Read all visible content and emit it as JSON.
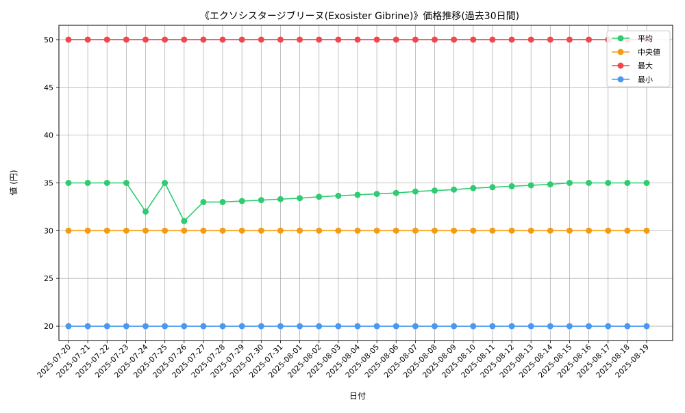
{
  "chart_data": {
    "type": "line",
    "title": "《エクソシスタージブリーヌ(Exosister Gibrine)》価格推移(過去30日間)",
    "xlabel": "日付",
    "ylabel": "値 (円)",
    "ylim": [
      18.5,
      51.5
    ],
    "yticks": [
      20,
      25,
      30,
      35,
      40,
      45,
      50
    ],
    "grid": true,
    "legend_position": "top-right",
    "categories": [
      "2025-07-20",
      "2025-07-21",
      "2025-07-22",
      "2025-07-23",
      "2025-07-24",
      "2025-07-25",
      "2025-07-26",
      "2025-07-27",
      "2025-07-28",
      "2025-07-29",
      "2025-07-30",
      "2025-07-31",
      "2025-08-01",
      "2025-08-02",
      "2025-08-03",
      "2025-08-04",
      "2025-08-05",
      "2025-08-06",
      "2025-08-07",
      "2025-08-08",
      "2025-08-09",
      "2025-08-10",
      "2025-08-11",
      "2025-08-12",
      "2025-08-13",
      "2025-08-14",
      "2025-08-15",
      "2025-08-16",
      "2025-08-17",
      "2025-08-18",
      "2025-08-19"
    ],
    "series": [
      {
        "name": "平均",
        "color": "#2ecc71",
        "values": [
          35,
          35,
          35,
          35,
          32,
          35,
          31,
          33,
          33,
          33.1,
          33.2,
          33.3,
          33.4,
          33.55,
          33.65,
          33.75,
          33.85,
          33.95,
          34.1,
          34.2,
          34.3,
          34.45,
          34.55,
          34.65,
          34.75,
          34.85,
          35,
          35,
          35,
          35,
          35
        ]
      },
      {
        "name": "中央値",
        "color": "#f39c12",
        "values": [
          30,
          30,
          30,
          30,
          30,
          30,
          30,
          30,
          30,
          30,
          30,
          30,
          30,
          30,
          30,
          30,
          30,
          30,
          30,
          30,
          30,
          30,
          30,
          30,
          30,
          30,
          30,
          30,
          30,
          30,
          30
        ]
      },
      {
        "name": "最大",
        "color": "#f0474f",
        "values": [
          50,
          50,
          50,
          50,
          50,
          50,
          50,
          50,
          50,
          50,
          50,
          50,
          50,
          50,
          50,
          50,
          50,
          50,
          50,
          50,
          50,
          50,
          50,
          50,
          50,
          50,
          50,
          50,
          50,
          50,
          50
        ]
      },
      {
        "name": "最小",
        "color": "#4a98f0",
        "values": [
          20,
          20,
          20,
          20,
          20,
          20,
          20,
          20,
          20,
          20,
          20,
          20,
          20,
          20,
          20,
          20,
          20,
          20,
          20,
          20,
          20,
          20,
          20,
          20,
          20,
          20,
          20,
          20,
          20,
          20,
          20
        ]
      }
    ]
  }
}
